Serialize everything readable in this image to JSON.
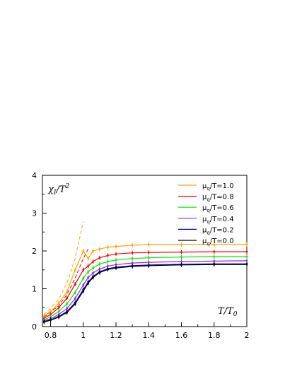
{
  "chart_data": {
    "type": "line",
    "ylabel": "χI/T2",
    "ylabel_main": "χ",
    "ylabel_sub": "I",
    "ylabel_mid": "/T",
    "ylabel_sup": "2",
    "xlabel": "T/T0",
    "xlabel_main": "T/T",
    "xlabel_sub": "0",
    "xlim": [
      0.75,
      2.0
    ],
    "ylim": [
      0,
      4
    ],
    "xticks": [
      "0.8",
      "1",
      "1.2",
      "1.4",
      "1.6",
      "1.8",
      "2"
    ],
    "yticks": [
      "0",
      "1",
      "2",
      "3",
      "4"
    ],
    "legend_position": "top-right",
    "series": [
      {
        "name": "μq/T=1.0",
        "label_main": "μ",
        "label_sub": "q",
        "label_rest": "/T=1.0",
        "color": "#ffa500",
        "x": [
          0.76,
          0.8,
          0.85,
          0.9,
          0.95,
          1.0,
          1.03,
          1.06,
          1.1,
          1.15,
          1.2,
          1.3,
          1.4,
          1.6,
          1.8,
          2.0
        ],
        "y": [
          0.28,
          0.4,
          0.62,
          0.92,
          1.5,
          2.0,
          1.8,
          2.0,
          2.05,
          2.1,
          2.12,
          2.15,
          2.17,
          2.17,
          2.17,
          2.17
        ]
      },
      {
        "name": "μq/T=0.8",
        "label_main": "μ",
        "label_sub": "q",
        "label_rest": "/T=0.8",
        "color": "#ff0000",
        "x": [
          0.76,
          0.8,
          0.85,
          0.9,
          0.95,
          1.0,
          1.03,
          1.06,
          1.1,
          1.15,
          1.2,
          1.3,
          1.4,
          1.6,
          1.8,
          2.0
        ],
        "y": [
          0.22,
          0.32,
          0.5,
          0.75,
          1.12,
          1.5,
          1.6,
          1.72,
          1.82,
          1.88,
          1.92,
          1.95,
          1.96,
          1.97,
          1.98,
          1.98
        ]
      },
      {
        "name": "μq/T=0.6",
        "label_main": "μ",
        "label_sub": "q",
        "label_rest": "/T=0.6",
        "color": "#00ee00",
        "x": [
          0.76,
          0.8,
          0.85,
          0.9,
          0.95,
          1.0,
          1.03,
          1.06,
          1.1,
          1.15,
          1.2,
          1.3,
          1.4,
          1.6,
          1.8,
          2.0
        ],
        "y": [
          0.18,
          0.26,
          0.4,
          0.6,
          0.9,
          1.28,
          1.45,
          1.55,
          1.65,
          1.72,
          1.76,
          1.8,
          1.82,
          1.84,
          1.85,
          1.85
        ]
      },
      {
        "name": "μq/T=0.4",
        "label_main": "μ",
        "label_sub": "q",
        "label_rest": "/T=0.4",
        "color": "#a020f0",
        "x": [
          0.76,
          0.8,
          0.85,
          0.9,
          0.95,
          1.0,
          1.03,
          1.06,
          1.1,
          1.15,
          1.2,
          1.3,
          1.4,
          1.6,
          1.8,
          2.0
        ],
        "y": [
          0.15,
          0.21,
          0.32,
          0.48,
          0.74,
          1.1,
          1.3,
          1.42,
          1.52,
          1.6,
          1.64,
          1.68,
          1.7,
          1.72,
          1.73,
          1.74
        ]
      },
      {
        "name": "μq/T=0.2",
        "label_main": "μ",
        "label_sub": "q",
        "label_rest": "/T=0.2",
        "color": "#0000cd",
        "x": [
          0.76,
          0.8,
          0.85,
          0.9,
          0.95,
          1.0,
          1.03,
          1.06,
          1.1,
          1.15,
          1.2,
          1.3,
          1.4,
          1.6,
          1.8,
          2.0
        ],
        "y": [
          0.13,
          0.18,
          0.27,
          0.4,
          0.63,
          0.98,
          1.18,
          1.33,
          1.45,
          1.53,
          1.57,
          1.61,
          1.63,
          1.65,
          1.66,
          1.66
        ]
      },
      {
        "name": "μq/T=0.0",
        "label_main": "μ",
        "label_sub": "q",
        "label_rest": "/T=0.0",
        "color": "#000000",
        "x": [
          0.76,
          0.8,
          0.85,
          0.9,
          0.95,
          1.0,
          1.03,
          1.06,
          1.1,
          1.15,
          1.2,
          1.3,
          1.4,
          1.6,
          1.8,
          2.0
        ],
        "y": [
          0.12,
          0.17,
          0.25,
          0.37,
          0.6,
          0.94,
          1.15,
          1.3,
          1.43,
          1.51,
          1.55,
          1.59,
          1.61,
          1.63,
          1.64,
          1.64
        ]
      }
    ],
    "dashed_series": [
      {
        "color": "#ffa500",
        "x": [
          0.76,
          0.85,
          0.9,
          0.95,
          1.0
        ],
        "y": [
          0.32,
          0.72,
          1.15,
          1.8,
          2.78
        ]
      },
      {
        "color": "#ff0000",
        "x": [
          0.76,
          0.85,
          0.9,
          0.95,
          1.0,
          1.03
        ],
        "y": [
          0.25,
          0.55,
          0.85,
          1.28,
          1.8,
          2.05
        ]
      }
    ]
  }
}
